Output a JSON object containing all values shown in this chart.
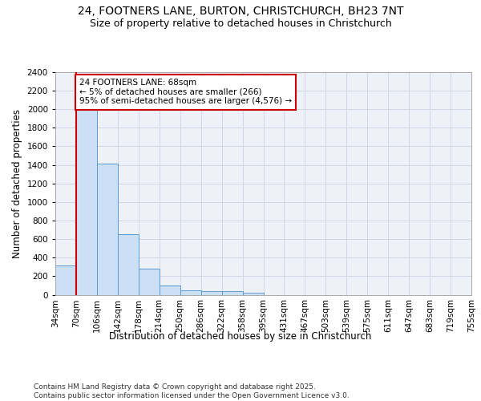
{
  "title_line1": "24, FOOTNERS LANE, BURTON, CHRISTCHURCH, BH23 7NT",
  "title_line2": "Size of property relative to detached houses in Christchurch",
  "xlabel": "Distribution of detached houses by size in Christchurch",
  "ylabel": "Number of detached properties",
  "bar_values": [
    320,
    2000,
    1410,
    650,
    280,
    100,
    45,
    40,
    35,
    20,
    0,
    0,
    0,
    0,
    0,
    0,
    0,
    0,
    0,
    0
  ],
  "bar_labels": [
    "34sqm",
    "70sqm",
    "106sqm",
    "142sqm",
    "178sqm",
    "214sqm",
    "250sqm",
    "286sqm",
    "322sqm",
    "358sqm",
    "395sqm",
    "431sqm",
    "467sqm",
    "503sqm",
    "539sqm",
    "575sqm",
    "611sqm",
    "647sqm",
    "683sqm",
    "719sqm",
    "755sqm"
  ],
  "bar_color": "#cce0f5",
  "bar_edge_color": "#5b9bd5",
  "grid_color": "#d0d8e8",
  "background_color": "#eef2f8",
  "vline_color": "#cc0000",
  "annotation_text": "24 FOOTNERS LANE: 68sqm\n← 5% of detached houses are smaller (266)\n95% of semi-detached houses are larger (4,576) →",
  "annotation_box_color": "#ffffff",
  "annotation_box_edge": "#cc0000",
  "ylim": [
    0,
    2400
  ],
  "yticks": [
    0,
    200,
    400,
    600,
    800,
    1000,
    1200,
    1400,
    1600,
    1800,
    2000,
    2200,
    2400
  ],
  "footer_text": "Contains HM Land Registry data © Crown copyright and database right 2025.\nContains public sector information licensed under the Open Government Licence v3.0.",
  "title_fontsize": 10,
  "subtitle_fontsize": 9,
  "axis_label_fontsize": 8.5,
  "tick_fontsize": 7.5,
  "annotation_fontsize": 7.5,
  "footer_fontsize": 6.5
}
